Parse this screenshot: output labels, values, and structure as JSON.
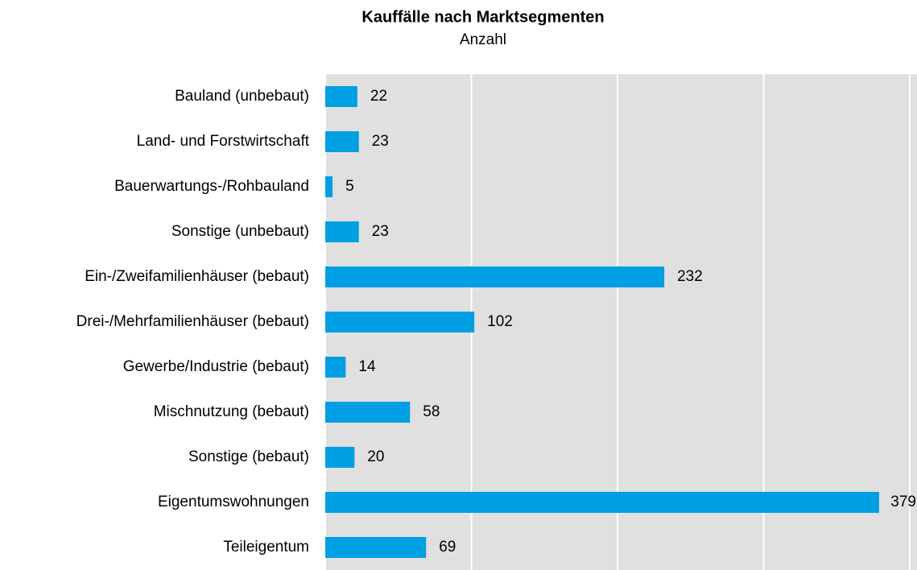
{
  "chart_data": {
    "type": "bar",
    "orientation": "horizontal",
    "title": "Kauffälle nach Marktsegmenten",
    "subtitle": "Anzahl",
    "categories": [
      "Bauland (unbebaut)",
      "Land- und Forstwirtschaft",
      "Bauerwartungs-/Rohbauland",
      "Sonstige (unbebaut)",
      "Ein-/Zweifamilienhäuser (bebaut)",
      "Drei-/Mehrfamilienhäuser (bebaut)",
      "Gewerbe/Industrie (bebaut)",
      "Mischnutzung (bebaut)",
      "Sonstige (bebaut)",
      "Eigentumswohnungen",
      "Teileigentum"
    ],
    "values": [
      22,
      23,
      5,
      23,
      232,
      102,
      14,
      58,
      20,
      379,
      69
    ],
    "color": "#009fe3",
    "xlim": [
      0,
      400
    ],
    "xticks": [
      0,
      100,
      200,
      300,
      400
    ],
    "grid": true
  }
}
